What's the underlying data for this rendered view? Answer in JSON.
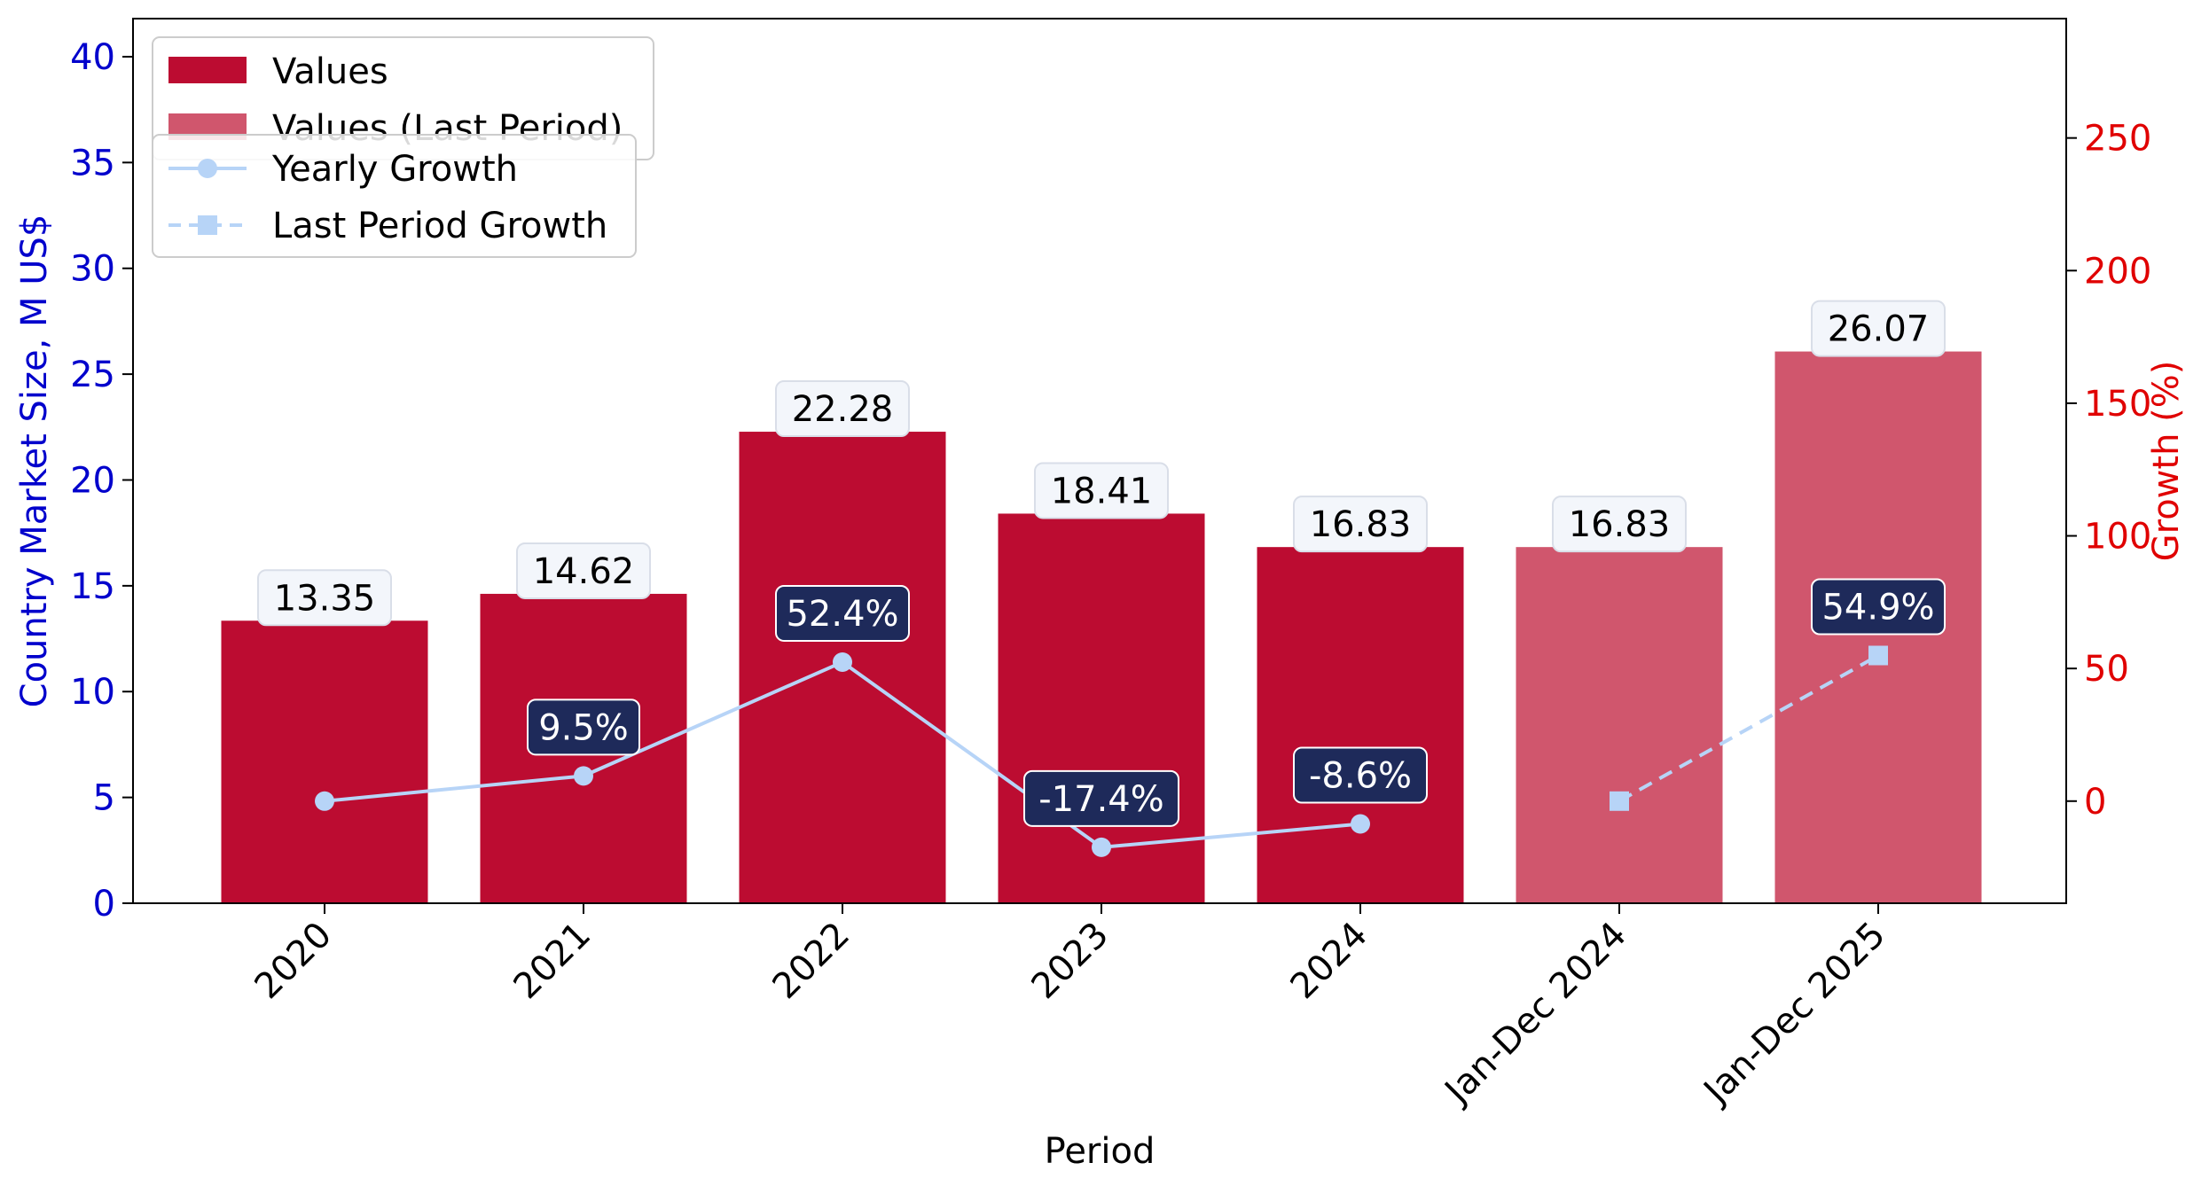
{
  "chart_data": {
    "type": "bar",
    "categories": [
      "2020",
      "2021",
      "2022",
      "2023",
      "2024",
      "Jan-Dec 2024",
      "Jan-Dec 2025"
    ],
    "series": [
      {
        "name": "Values",
        "axis": "left",
        "values": [
          13.35,
          14.62,
          22.28,
          18.41,
          16.83,
          null,
          null
        ],
        "labels": [
          "13.35",
          "14.62",
          "22.28",
          "18.41",
          "16.83",
          "",
          ""
        ]
      },
      {
        "name": "Values (Last Period)",
        "axis": "left",
        "values": [
          null,
          null,
          null,
          null,
          null,
          16.83,
          26.07
        ],
        "labels": [
          "",
          "",
          "",
          "",
          "",
          "16.83",
          "26.07"
        ]
      },
      {
        "name": "Yearly Growth",
        "type": "line",
        "axis": "right",
        "values": [
          0,
          9.5,
          52.4,
          -17.4,
          -8.6,
          null,
          null
        ],
        "labels": [
          "",
          "9.5%",
          "52.4%",
          "-17.4%",
          "-8.6%",
          "",
          ""
        ]
      },
      {
        "name": "Last Period Growth",
        "type": "line",
        "axis": "right",
        "dashed": true,
        "values": [
          null,
          null,
          null,
          null,
          null,
          0,
          54.9
        ],
        "labels": [
          "",
          "",
          "",
          "",
          "",
          "",
          "54.9%"
        ]
      }
    ],
    "xlabel": "Period",
    "ylabel": "Country Market Size, M US$",
    "y2label": "Growth (%)",
    "ylim": [
      0,
      41.8
    ],
    "y2lim": [
      -38.5,
      295
    ],
    "yticks": [
      "0",
      "5",
      "10",
      "15",
      "20",
      "25",
      "30",
      "35",
      "40"
    ],
    "y2ticks": [
      "0",
      "50",
      "100",
      "150",
      "200",
      "250"
    ],
    "grid": false,
    "legend_position": "top-left",
    "colors": {
      "bar": "#bc0c31",
      "bar_last": "#d0566d",
      "growth_line": "#b7d4f7",
      "growth_label_bg": "#1e2a5a",
      "value_label_bg": "#f3f6fb",
      "left_axis": "#0000cc",
      "right_axis": "#e00000"
    }
  }
}
